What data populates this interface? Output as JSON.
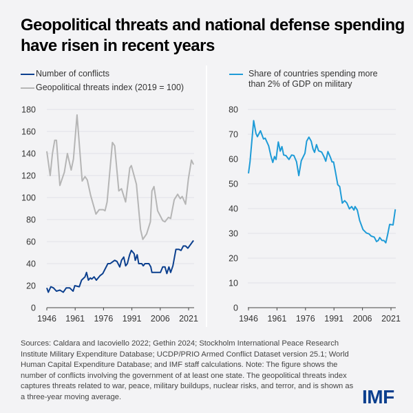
{
  "title": "Geopolitical threats and national defense spending have risen in recent years",
  "legend_left": [
    {
      "label": "Number of conflicts",
      "color": "#0b3f8e"
    },
    {
      "label": "Geopolitical threats index (2019 = 100)",
      "color": "#b5b5b5"
    }
  ],
  "legend_right": [
    {
      "label": "Share of countries spending more than 2% of GDP on military",
      "color": "#1e9bd7"
    }
  ],
  "notes": "Sources: Caldara and Iacoviello 2022; Gethin 2024; Stockholm International Peace Research Institute Military Expenditure Database; UCDP/PRIO Armed Conflict Dataset version 25.1; World Human Capital Expenditure Database; and IMF staff calculations. Note: The figure shows the number of conflicts involving the government of at least one state. The geopolitical threats index captures threats related to war, peace, military buildups, nuclear risks, and terror, and is shown as a three-year moving average.",
  "logo": "IMF",
  "chart_data": [
    {
      "type": "line",
      "xlim": [
        1946,
        2023.6
      ],
      "ylim": [
        0,
        180
      ],
      "xticks": [
        1946,
        1961,
        1976,
        1991,
        2006,
        2021
      ],
      "yticks": [
        0,
        20,
        40,
        60,
        80,
        100,
        120,
        140,
        160,
        180
      ],
      "grid": true,
      "legend": "top",
      "series": [
        {
          "name": "Geopolitical threats index (2019 = 100)",
          "color": "#b5b5b5",
          "points": [
            [
              1946,
              142
            ],
            [
              1947.8,
              120
            ],
            [
              1949,
              140
            ],
            [
              1950.2,
              152
            ],
            [
              1951.1,
              152
            ],
            [
              1952.9,
              111
            ],
            [
              1955.3,
              123
            ],
            [
              1956.9,
              140
            ],
            [
              1958.9,
              125
            ],
            [
              1960.1,
              135
            ],
            [
              1962,
              175
            ],
            [
              1964.7,
              115
            ],
            [
              1966.2,
              119
            ],
            [
              1967.4,
              116
            ],
            [
              1969.2,
              102
            ],
            [
              1972,
              85
            ],
            [
              1973.7,
              89
            ],
            [
              1975.9,
              89
            ],
            [
              1976.8,
              88
            ],
            [
              1977.9,
              96
            ],
            [
              1980.7,
              150
            ],
            [
              1981.9,
              147
            ],
            [
              1984.1,
              106
            ],
            [
              1985.5,
              108
            ],
            [
              1987.7,
              96
            ],
            [
              1989.9,
              127
            ],
            [
              1990.7,
              129
            ],
            [
              1992,
              121
            ],
            [
              1993.4,
              112
            ],
            [
              1995.6,
              71
            ],
            [
              1996.8,
              62
            ],
            [
              1998.8,
              67
            ],
            [
              2000.8,
              78
            ],
            [
              2001.6,
              106
            ],
            [
              2002.7,
              110
            ],
            [
              2004.6,
              88
            ],
            [
              2007.3,
              79
            ],
            [
              2008.5,
              78
            ],
            [
              2010.3,
              82
            ],
            [
              2011.5,
              81
            ],
            [
              2013.4,
              98
            ],
            [
              2015.2,
              103
            ],
            [
              2016.6,
              99
            ],
            [
              2017.6,
              101
            ],
            [
              2019.4,
              94
            ],
            [
              2020.9,
              117
            ],
            [
              2022.5,
              134
            ],
            [
              2023.6,
              130
            ]
          ]
        },
        {
          "name": "Number of conflicts",
          "color": "#0b3f8e",
          "points": [
            [
              1946,
              18
            ],
            [
              1946.8,
              14
            ],
            [
              1948.1,
              19
            ],
            [
              1949.5,
              18
            ],
            [
              1951.1,
              15
            ],
            [
              1952.9,
              16
            ],
            [
              1954.7,
              14
            ],
            [
              1956.3,
              18
            ],
            [
              1958.1,
              18
            ],
            [
              1959.9,
              15
            ],
            [
              1960.8,
              20
            ],
            [
              1963.2,
              19
            ],
            [
              1964.4,
              25
            ],
            [
              1966.2,
              28
            ],
            [
              1967,
              32
            ],
            [
              1968,
              25
            ],
            [
              1969,
              27
            ],
            [
              1969.8,
              26
            ],
            [
              1971,
              28
            ],
            [
              1972.2,
              25
            ],
            [
              1974.1,
              29
            ],
            [
              1975.6,
              31
            ],
            [
              1976.8,
              35
            ],
            [
              1978.3,
              40
            ],
            [
              1979.5,
              40
            ],
            [
              1981.9,
              43
            ],
            [
              1983.1,
              42
            ],
            [
              1984.6,
              37
            ],
            [
              1985.5,
              43
            ],
            [
              1986.7,
              46
            ],
            [
              1987.7,
              38
            ],
            [
              1988.6,
              40
            ],
            [
              1989.8,
              48
            ],
            [
              1990.7,
              52
            ],
            [
              1992.2,
              49
            ],
            [
              1992.8,
              43
            ],
            [
              1993.8,
              48
            ],
            [
              1994.6,
              40
            ],
            [
              1996.2,
              40
            ],
            [
              1997,
              38
            ],
            [
              1997.9,
              40
            ],
            [
              2000,
              40
            ],
            [
              2001,
              37
            ],
            [
              2001.6,
              32
            ],
            [
              2006.1,
              32
            ],
            [
              2007.3,
              37
            ],
            [
              2008.5,
              37
            ],
            [
              2009.5,
              31
            ],
            [
              2010.6,
              37
            ],
            [
              2011.5,
              32
            ],
            [
              2012.7,
              38
            ],
            [
              2014.3,
              53
            ],
            [
              2015.8,
              53
            ],
            [
              2017,
              52
            ],
            [
              2018.2,
              56
            ],
            [
              2019.4,
              56
            ],
            [
              2020.6,
              54
            ],
            [
              2023.6,
              61
            ]
          ]
        }
      ]
    },
    {
      "type": "line",
      "xlim": [
        1946,
        2023.6
      ],
      "ylim": [
        0,
        80
      ],
      "xticks": [
        1946,
        1961,
        1976,
        1991,
        2006,
        2021
      ],
      "yticks": [
        0,
        10,
        20,
        30,
        40,
        50,
        60,
        70,
        80
      ],
      "grid": true,
      "legend": "top",
      "series": [
        {
          "name": "Share of countries spending more than 2% of GDP on military",
          "color": "#1e9bd7",
          "points": [
            [
              1946,
              54.2
            ],
            [
              1946.8,
              58.8
            ],
            [
              1948.7,
              75.5
            ],
            [
              1949.9,
              70.4
            ],
            [
              1950.7,
              69
            ],
            [
              1952.3,
              71.4
            ],
            [
              1953.9,
              68.1
            ],
            [
              1954.8,
              68.4
            ],
            [
              1956.6,
              65.3
            ],
            [
              1957.8,
              61.2
            ],
            [
              1958.8,
              58.6
            ],
            [
              1959.7,
              61
            ],
            [
              1960.5,
              59.8
            ],
            [
              1961.7,
              66.9
            ],
            [
              1962.7,
              63.2
            ],
            [
              1963.6,
              65
            ],
            [
              1964.5,
              61.6
            ],
            [
              1965.7,
              61.4
            ],
            [
              1967.3,
              59.8
            ],
            [
              1968.7,
              61.6
            ],
            [
              1969.9,
              61.4
            ],
            [
              1971.3,
              58.9
            ],
            [
              1972.5,
              53.3
            ],
            [
              1973.8,
              59.3
            ],
            [
              1975.7,
              62.3
            ],
            [
              1976.6,
              67.2
            ],
            [
              1977.8,
              68.8
            ],
            [
              1979,
              67.2
            ],
            [
              1980,
              64
            ],
            [
              1980.8,
              62.7
            ],
            [
              1981.8,
              65.8
            ],
            [
              1982.9,
              63.3
            ],
            [
              1984.5,
              62.8
            ],
            [
              1985.7,
              61
            ],
            [
              1986.7,
              59.1
            ],
            [
              1987.8,
              63
            ],
            [
              1989.1,
              60.7
            ],
            [
              1990,
              58.8
            ],
            [
              1990.8,
              58.8
            ],
            [
              1991.8,
              54.7
            ],
            [
              1993,
              49.6
            ],
            [
              1994,
              48.9
            ],
            [
              1995.4,
              42.2
            ],
            [
              1996.6,
              43.2
            ],
            [
              1997.8,
              42.2
            ],
            [
              1999.1,
              39.9
            ],
            [
              2000.3,
              40.8
            ],
            [
              2001.5,
              39.4
            ],
            [
              2002.1,
              40.8
            ],
            [
              2003.3,
              39.4
            ],
            [
              2004.5,
              35.2
            ],
            [
              2006.3,
              31.5
            ],
            [
              2008.1,
              30.1
            ],
            [
              2009.4,
              29.8
            ],
            [
              2010.6,
              28.9
            ],
            [
              2012.2,
              28.5
            ],
            [
              2013.4,
              26.7
            ],
            [
              2014.3,
              27.1
            ],
            [
              2015.1,
              28.3
            ],
            [
              2016.3,
              27.1
            ],
            [
              2017.3,
              27.1
            ],
            [
              2018.3,
              26.2
            ],
            [
              2019.3,
              29.7
            ],
            [
              2020.3,
              33.6
            ],
            [
              2022.1,
              33.4
            ],
            [
              2022.7,
              36.6
            ],
            [
              2023.3,
              39.7
            ]
          ]
        }
      ]
    }
  ]
}
